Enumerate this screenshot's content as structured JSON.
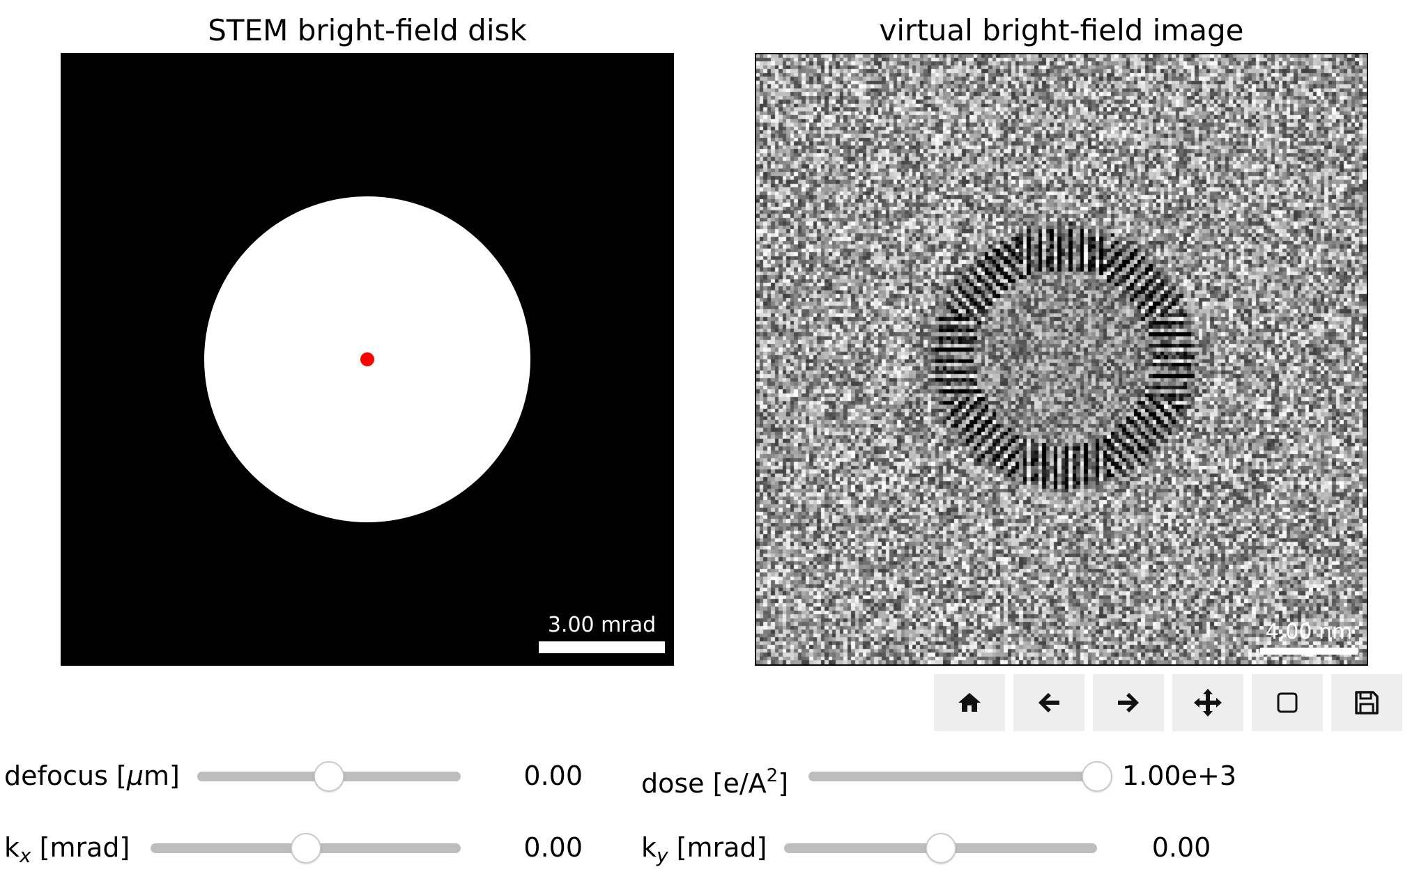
{
  "panels": {
    "left": {
      "title": "STEM bright-field disk",
      "scalebar": "3.00 mrad",
      "marker_color": "#ff0000"
    },
    "right": {
      "title": "virtual bright-field image",
      "scalebar": "4.00 nm"
    }
  },
  "toolbar": {
    "buttons": [
      {
        "name": "home",
        "icon": "home-icon"
      },
      {
        "name": "back",
        "icon": "arrow-left-icon"
      },
      {
        "name": "forward",
        "icon": "arrow-right-icon"
      },
      {
        "name": "pan",
        "icon": "move-icon"
      },
      {
        "name": "zoom",
        "icon": "zoom-rect-icon"
      },
      {
        "name": "save",
        "icon": "save-icon"
      }
    ]
  },
  "controls": {
    "defocus": {
      "label_pre": "defocus [",
      "label_mu": "μ",
      "label_post": "m]",
      "value": "0.00",
      "fraction": 0.5
    },
    "dose": {
      "label_pre": "dose [e/A",
      "label_sup": "2",
      "label_post": "]",
      "value": "1.00e+3",
      "fraction": 1.0
    },
    "kx": {
      "label_k": "k",
      "label_sub": "x",
      "label_post": " [mrad]",
      "value": "0.00",
      "fraction": 0.5
    },
    "ky": {
      "label_k": "k",
      "label_sub": "y",
      "label_post": " [mrad]",
      "value": "0.00",
      "fraction": 0.5
    }
  }
}
